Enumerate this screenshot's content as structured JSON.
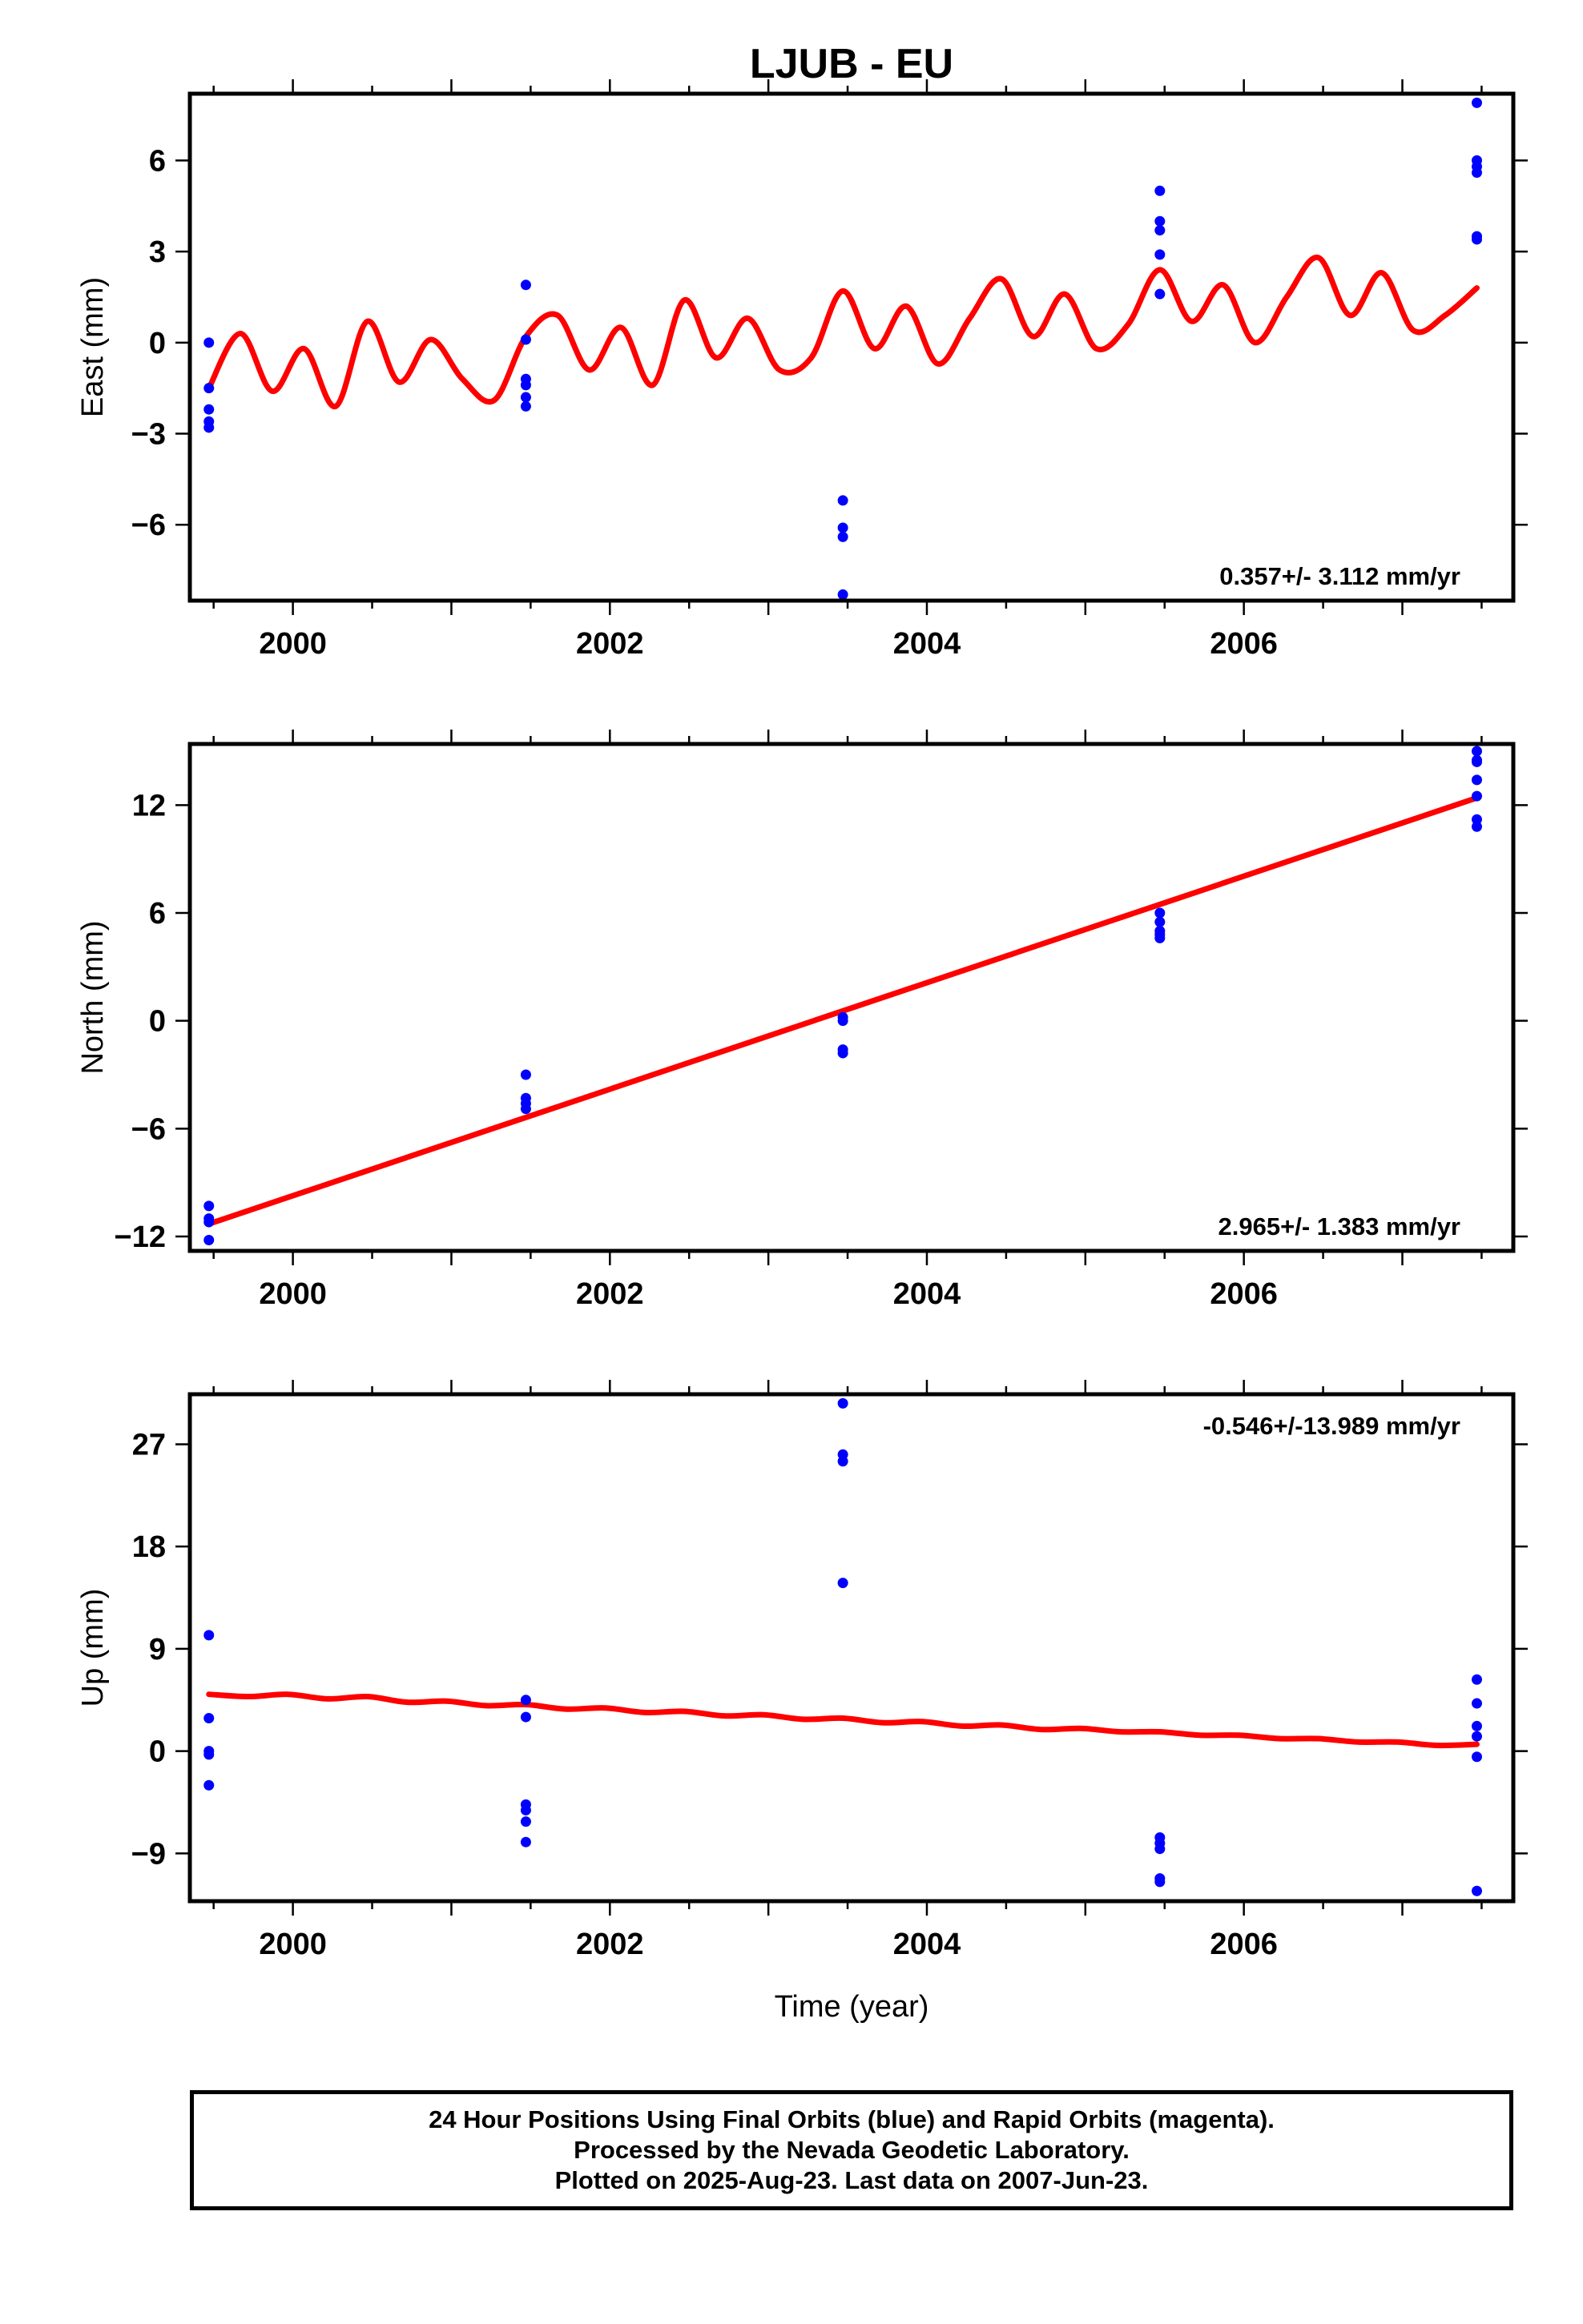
{
  "title": "LJUB - EU",
  "colors": {
    "final_orbits": "#0000ff",
    "model": "#ff0000",
    "frame": "#000000"
  },
  "footer": {
    "line1": "24 Hour Positions Using Final Orbits (blue) and Rapid Orbits (magenta).",
    "line2": "Processed by the Nevada Geodetic Laboratory.",
    "line3": "Plotted on 2025-Aug-23. Last data on 2007-Jun-23."
  },
  "chart_data": [
    {
      "type": "scatter",
      "name": "east",
      "ylabel": "East (mm)",
      "xlabel": "",
      "xlim": [
        1999.35,
        2007.7
      ],
      "ylim": [
        -8.5,
        8.2
      ],
      "xticks": [
        2000,
        2002,
        2004,
        2006
      ],
      "xtick_labels": [
        "2000",
        "2002",
        "2004",
        "2006"
      ],
      "yticks": [
        -6,
        -3,
        0,
        3,
        6
      ],
      "ytick_labels": [
        "−6",
        "−3",
        "0",
        "3",
        "6"
      ],
      "rate_text": "0.357+/- 3.112 mm/yr",
      "rate_position": "bottom-right",
      "points": {
        "x": [
          1999.47,
          1999.47,
          1999.47,
          1999.47,
          1999.47,
          2001.47,
          2001.47,
          2001.47,
          2001.47,
          2001.47,
          2001.47,
          2003.47,
          2003.47,
          2003.47,
          2003.47,
          2005.47,
          2005.47,
          2005.47,
          2005.47,
          2005.47,
          2007.47,
          2007.47,
          2007.47,
          2007.47,
          2007.47,
          2007.47
        ],
        "y": [
          0.0,
          -1.5,
          -2.2,
          -2.6,
          -2.8,
          1.9,
          0.1,
          -1.2,
          -1.4,
          -1.8,
          -2.1,
          -5.2,
          -6.1,
          -6.4,
          -8.3,
          5.0,
          4.0,
          3.7,
          2.9,
          1.6,
          7.9,
          6.0,
          5.6,
          3.5,
          3.4,
          5.8
        ]
      },
      "model": {
        "x": [
          1999.47,
          1999.67,
          1999.87,
          2000.07,
          2000.27,
          2000.47,
          2000.67,
          2000.87,
          2001.07,
          2001.27,
          2001.47,
          2001.67,
          2001.87,
          2002.07,
          2002.27,
          2002.47,
          2002.67,
          2002.87,
          2003.07,
          2003.27,
          2003.47,
          2003.67,
          2003.87,
          2004.07,
          2004.27,
          2004.47,
          2004.67,
          2004.87,
          2005.07,
          2005.27,
          2005.47,
          2005.67,
          2005.87,
          2006.07,
          2006.27,
          2006.47,
          2006.67,
          2006.87,
          2007.07,
          2007.27,
          2007.47
        ],
        "y": [
          -1.5,
          0.3,
          -1.6,
          -0.2,
          -2.1,
          0.7,
          -1.3,
          0.1,
          -1.2,
          -1.9,
          0.2,
          0.9,
          -0.9,
          0.5,
          -1.4,
          1.4,
          -0.5,
          0.8,
          -0.9,
          -0.5,
          1.7,
          -0.2,
          1.2,
          -0.7,
          0.8,
          2.1,
          0.2,
          1.6,
          -0.2,
          0.6,
          2.4,
          0.7,
          1.9,
          0.0,
          1.5,
          2.8,
          0.9,
          2.3,
          0.4,
          0.9,
          1.8
        ]
      }
    },
    {
      "type": "scatter",
      "name": "north",
      "ylabel": "North (mm)",
      "xlabel": "",
      "xlim": [
        1999.35,
        2007.7
      ],
      "ylim": [
        -12.8,
        15.4
      ],
      "xticks": [
        2000,
        2002,
        2004,
        2006
      ],
      "xtick_labels": [
        "2000",
        "2002",
        "2004",
        "2006"
      ],
      "yticks": [
        -12,
        -6,
        0,
        6,
        12
      ],
      "ytick_labels": [
        "−12",
        "−6",
        "0",
        "6",
        "12"
      ],
      "rate_text": "2.965+/- 1.383 mm/yr",
      "rate_position": "bottom-right",
      "points": {
        "x": [
          1999.47,
          1999.47,
          1999.47,
          1999.47,
          2001.47,
          2001.47,
          2001.47,
          2001.47,
          2003.47,
          2003.47,
          2003.47,
          2003.47,
          2005.47,
          2005.47,
          2005.47,
          2005.47,
          2005.47,
          2007.47,
          2007.47,
          2007.47,
          2007.47,
          2007.47,
          2007.47,
          2007.47
        ],
        "y": [
          -10.3,
          -11.0,
          -11.2,
          -12.2,
          -3.0,
          -4.3,
          -4.6,
          -4.9,
          0.2,
          0.0,
          -1.6,
          -1.8,
          6.0,
          5.5,
          5.0,
          4.8,
          4.6,
          15.0,
          14.5,
          13.4,
          12.5,
          11.2,
          10.8,
          14.4
        ]
      },
      "model": {
        "x": [
          1999.47,
          2007.47
        ],
        "y": [
          -11.3,
          12.4
        ]
      }
    },
    {
      "type": "scatter",
      "name": "up",
      "ylabel": "Up (mm)",
      "xlabel": "Time (year)",
      "xlim": [
        1999.35,
        2007.7
      ],
      "ylim": [
        -13.2,
        31.4
      ],
      "xticks": [
        2000,
        2002,
        2004,
        2006
      ],
      "xtick_labels": [
        "2000",
        "2002",
        "2004",
        "2006"
      ],
      "yticks": [
        -9,
        0,
        9,
        18,
        27
      ],
      "ytick_labels": [
        "−9",
        "0",
        "9",
        "18",
        "27"
      ],
      "rate_text": "-0.546+/-13.989 mm/yr",
      "rate_position": "top-right",
      "points": {
        "x": [
          1999.47,
          1999.47,
          1999.47,
          1999.47,
          1999.47,
          2001.47,
          2001.47,
          2001.47,
          2001.47,
          2001.47,
          2001.47,
          2003.47,
          2003.47,
          2003.47,
          2003.47,
          2005.47,
          2005.47,
          2005.47,
          2005.47,
          2005.47,
          2007.47,
          2007.47,
          2007.47,
          2007.47,
          2007.47,
          2007.47
        ],
        "y": [
          10.2,
          2.9,
          0.0,
          -0.3,
          -3.0,
          4.5,
          3.0,
          -4.7,
          -5.2,
          -6.2,
          -8.0,
          30.6,
          26.1,
          25.5,
          14.8,
          -7.6,
          -8.1,
          -8.6,
          -11.2,
          -11.5,
          6.3,
          4.2,
          2.2,
          1.3,
          -0.5,
          -12.3
        ]
      },
      "model": {
        "x": [
          1999.47,
          1999.72,
          1999.97,
          2000.22,
          2000.47,
          2000.72,
          2000.97,
          2001.22,
          2001.47,
          2001.72,
          2001.97,
          2002.22,
          2002.47,
          2002.72,
          2002.97,
          2003.22,
          2003.47,
          2003.72,
          2003.97,
          2004.22,
          2004.47,
          2004.72,
          2004.97,
          2005.22,
          2005.47,
          2005.72,
          2005.97,
          2006.22,
          2006.47,
          2006.72,
          2006.97,
          2007.22,
          2007.47
        ],
        "y": [
          5.0,
          4.8,
          5.0,
          4.6,
          4.8,
          4.3,
          4.4,
          4.0,
          4.1,
          3.7,
          3.8,
          3.4,
          3.5,
          3.1,
          3.2,
          2.8,
          2.9,
          2.5,
          2.6,
          2.2,
          2.3,
          1.9,
          2.0,
          1.7,
          1.7,
          1.4,
          1.4,
          1.1,
          1.1,
          0.8,
          0.8,
          0.5,
          0.6
        ]
      }
    }
  ]
}
